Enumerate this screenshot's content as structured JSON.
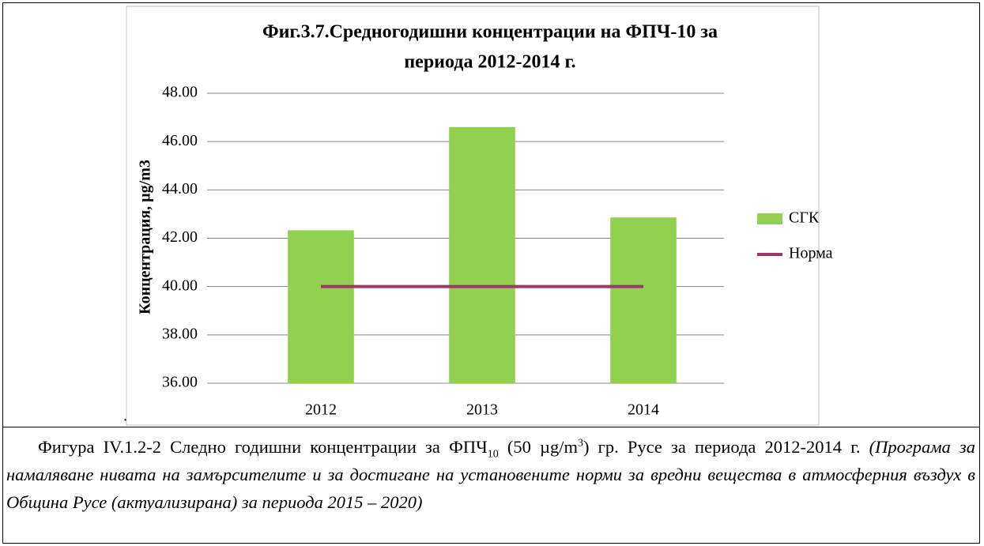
{
  "chart_data": {
    "type": "bar_line",
    "title": [
      "Фиг.3.7.Средногодишни концентрации на ФПЧ-10 за",
      "периода 2012-2014 г."
    ],
    "y_label": "Концентрация, µg/m3",
    "categories": [
      "2012",
      "2013",
      "2014"
    ],
    "series": [
      {
        "name": "СГК",
        "type": "bar",
        "color": "#92d050",
        "values": [
          42.33,
          46.6,
          42.86
        ]
      },
      {
        "name": "Норма",
        "type": "line",
        "color": "#953b64",
        "values": [
          40,
          40,
          40
        ]
      }
    ],
    "ylim": [
      36,
      48
    ],
    "yticks": [
      {
        "value": 36,
        "label": "36.00"
      },
      {
        "value": 38,
        "label": "38.00"
      },
      {
        "value": 40,
        "label": "40.00"
      },
      {
        "value": 42,
        "label": "42.00"
      },
      {
        "value": 44,
        "label": "44.00"
      },
      {
        "value": 46,
        "label": "46.00"
      },
      {
        "value": 48,
        "label": "48.00"
      }
    ],
    "grid": true,
    "legend": "right"
  },
  "stray_mark": ".",
  "caption": {
    "prefix": "Фигура IV.1.2-2 Следно годишни концентрации за ФПЧ",
    "sub": "10",
    "middle": " (50 µg/m",
    "sup": "3",
    "after": ")  гр. Русе за периода 2012-2014 г. ",
    "source": "(Програма за намаляване нивата на замърсителите и за достигане на установените норми за вредни вещества в атмосферния въздух в Община Русе (актуализирана) за периода 2015 – 2020)"
  }
}
